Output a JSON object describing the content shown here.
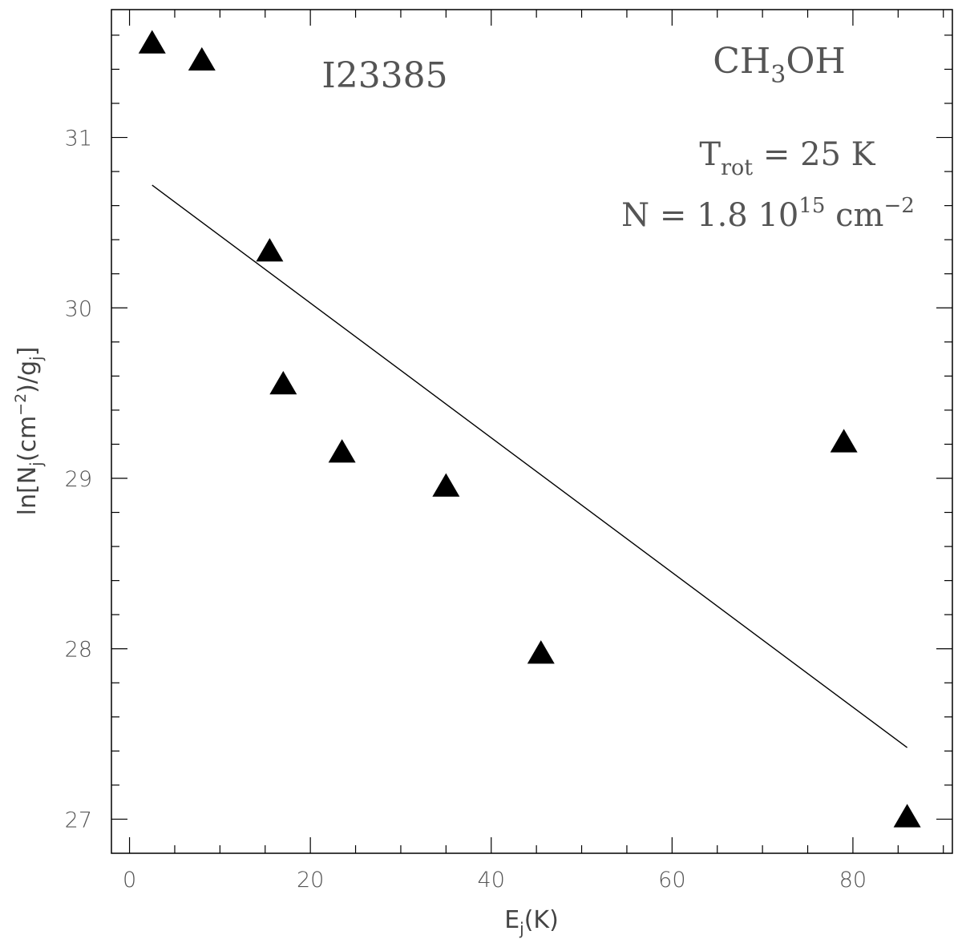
{
  "chart_data": {
    "type": "scatter",
    "x_axis": {
      "label_main": "E",
      "label_sub": "j",
      "label_tail": "(K)",
      "range": [
        -2,
        91
      ],
      "ticks": [
        0,
        20,
        40,
        60,
        80
      ],
      "tick_labels": [
        "0",
        "20",
        "40",
        "60",
        "80"
      ]
    },
    "y_axis": {
      "label_parts": [
        "ln[N",
        "j",
        "(cm",
        "−2",
        ")/g",
        "j",
        "]"
      ],
      "range": [
        26.8,
        31.75
      ],
      "ticks": [
        27,
        28,
        29,
        30,
        31
      ],
      "tick_labels": [
        "27",
        "28",
        "29",
        "30",
        "31"
      ]
    },
    "grid": false,
    "annotations": {
      "source": "I23385",
      "molecule": {
        "main": "CH",
        "sub": "3",
        "tail": "OH"
      },
      "trot": {
        "main": "T",
        "sub": "rot",
        "tail": " = 25 K"
      },
      "column": {
        "main": "N = 1.8 10",
        "sup": "15",
        "tail": " cm",
        "sup2": "−2"
      }
    },
    "series": [
      {
        "marker": "triangle",
        "color": "#000000",
        "points": [
          {
            "x": 2.5,
            "y": 31.55
          },
          {
            "x": 8.0,
            "y": 31.45
          },
          {
            "x": 15.5,
            "y": 30.33
          },
          {
            "x": 17.0,
            "y": 29.55
          },
          {
            "x": 23.5,
            "y": 29.15
          },
          {
            "x": 35.0,
            "y": 28.95
          },
          {
            "x": 45.5,
            "y": 27.97
          },
          {
            "x": 79.0,
            "y": 29.21
          },
          {
            "x": 86.0,
            "y": 27.01
          }
        ]
      },
      {
        "type": "line",
        "color": "#000000",
        "points": [
          {
            "x": 2.5,
            "y": 30.72
          },
          {
            "x": 86.0,
            "y": 27.42
          }
        ]
      }
    ]
  }
}
